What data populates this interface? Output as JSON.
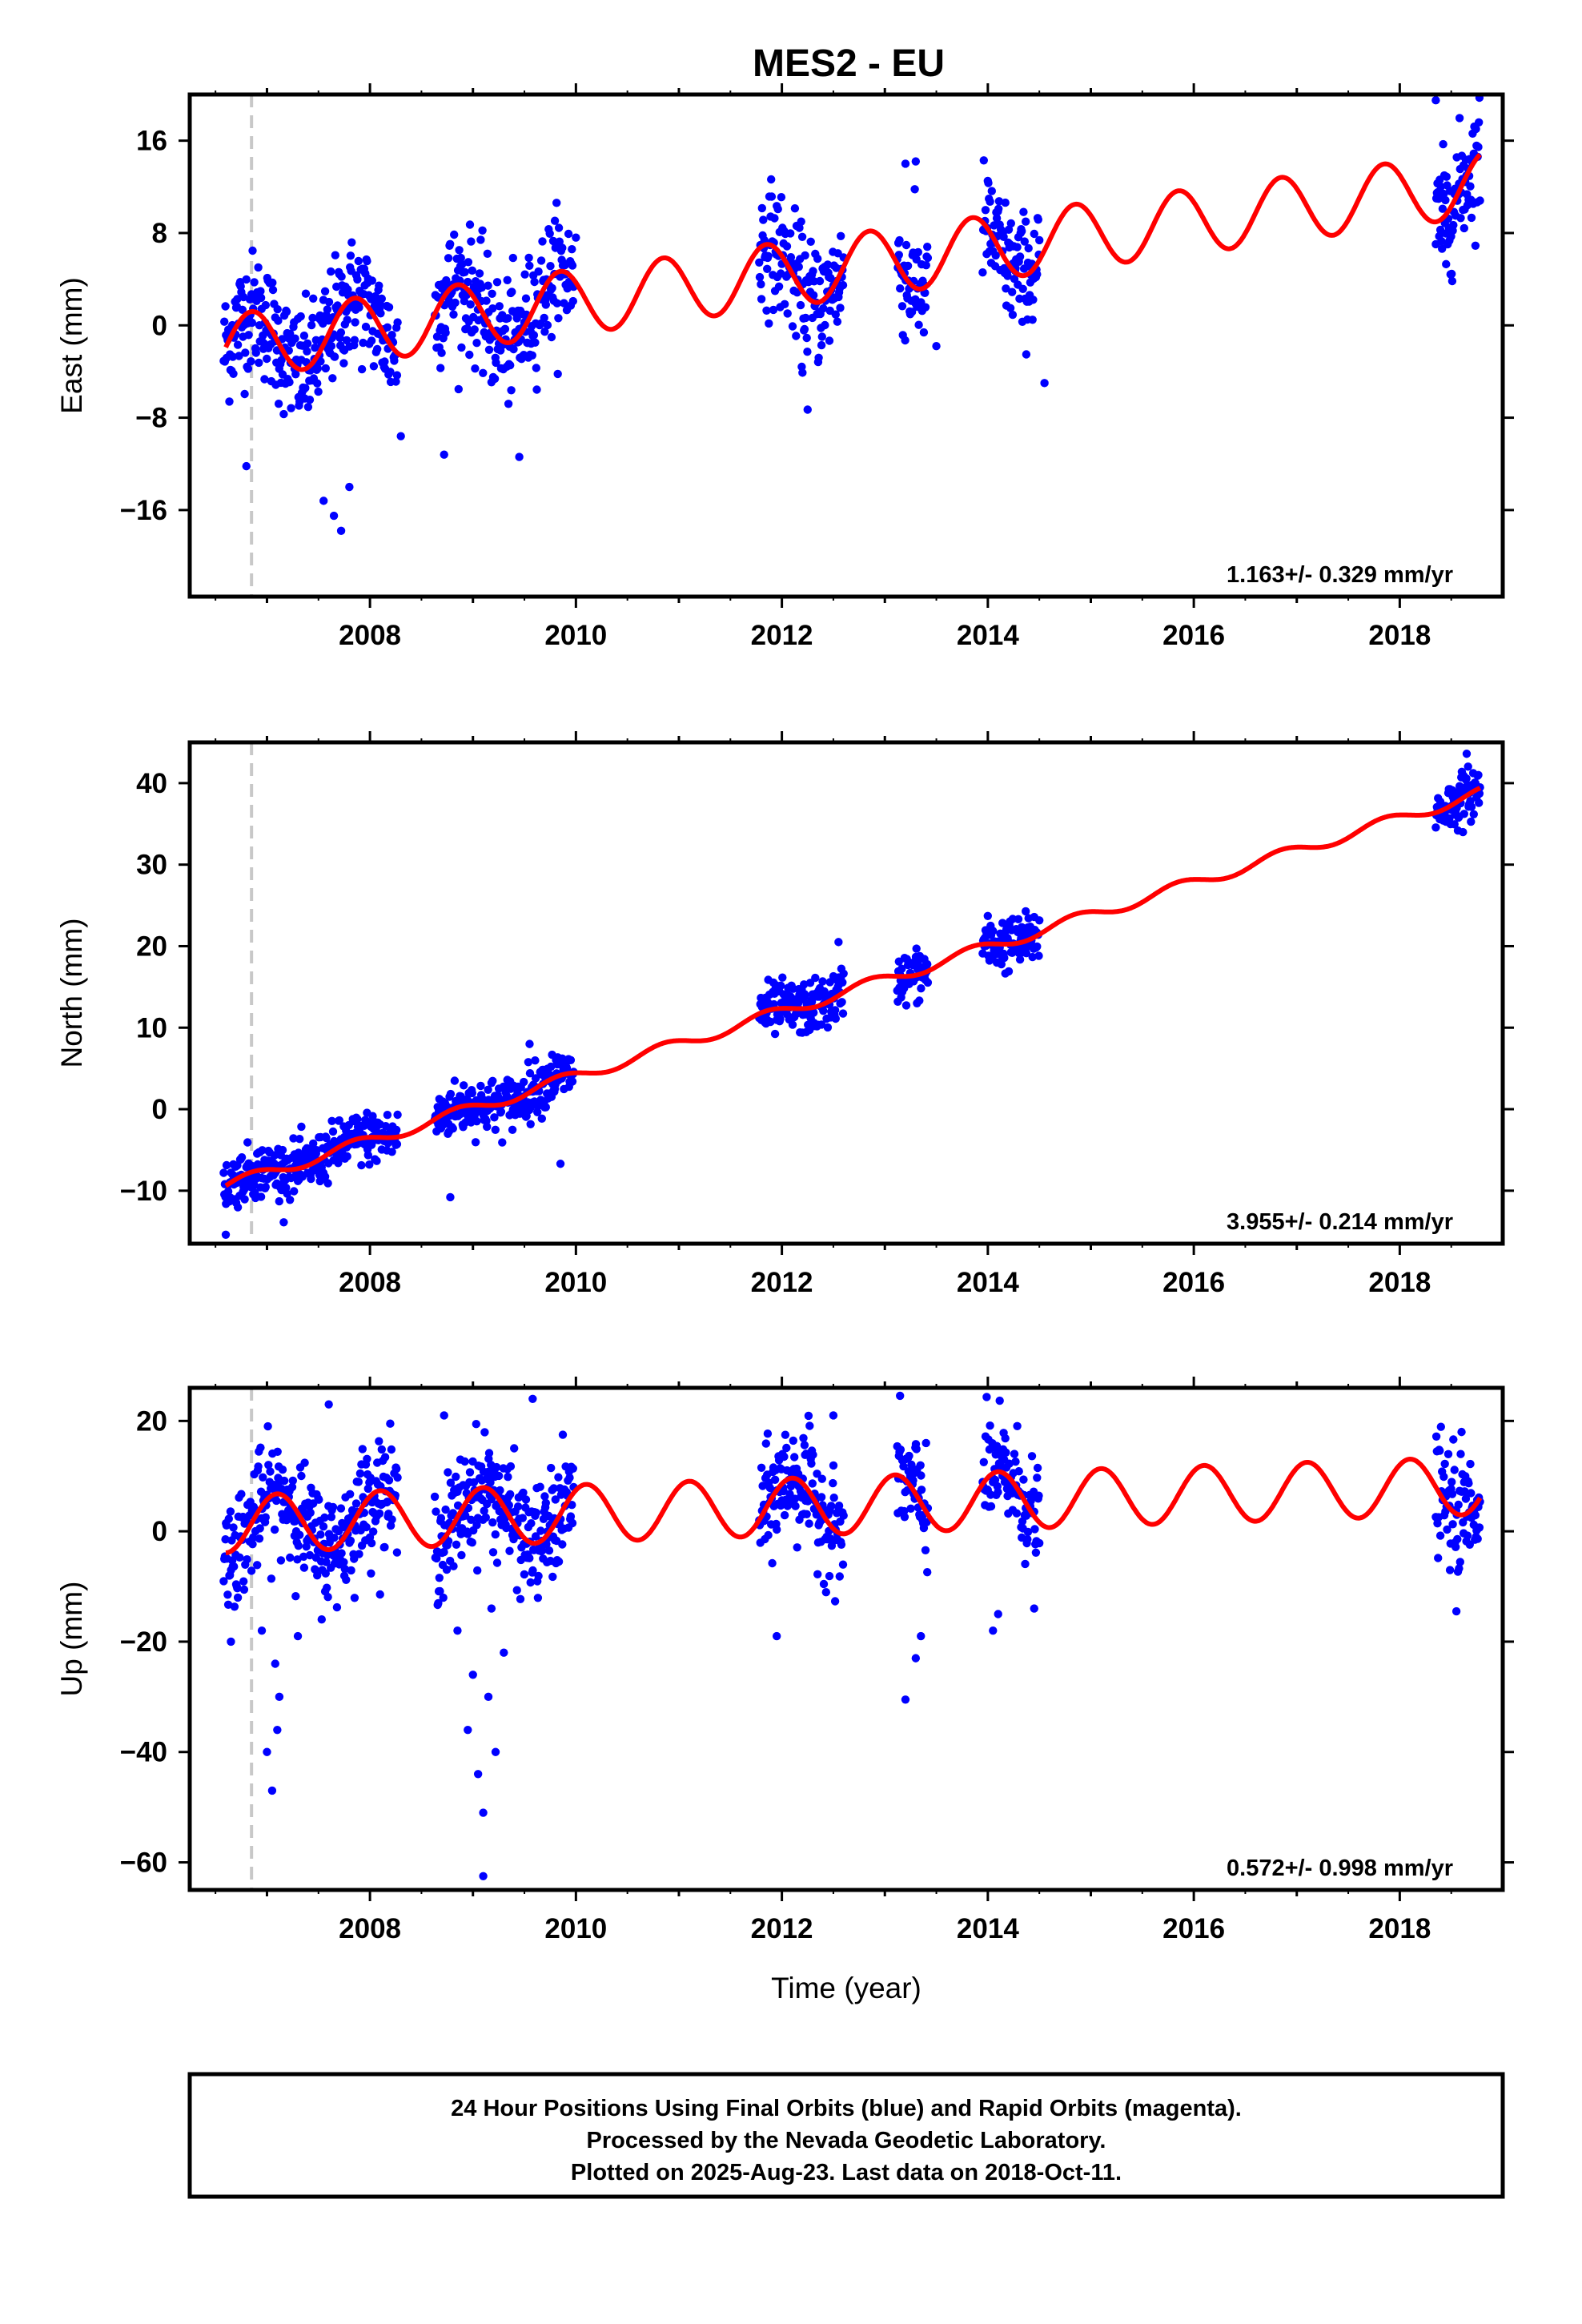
{
  "title": "MES2 - EU",
  "footer": {
    "lines": [
      "24 Hour Positions Using Final Orbits (blue) and Rapid Orbits (magenta).",
      "Processed by the Nevada Geodetic Laboratory.",
      "Plotted on 2025-Aug-23. Last data on 2018-Oct-11."
    ]
  },
  "colors": {
    "final_orbits": "#0000ff",
    "model": "#ff0000",
    "event_line": "#c8c8c8",
    "frame": "#000000"
  },
  "chart_data": [
    {
      "type": "scatter",
      "panel": "east",
      "title": "MES2 - EU",
      "xlabel": "",
      "ylabel": "East (mm)",
      "xlim": [
        2006.25,
        2019.0
      ],
      "ylim": [
        -23.5,
        20.0
      ],
      "xticks": [
        2008,
        2010,
        2012,
        2014,
        2016,
        2018
      ],
      "yticks": [
        -16,
        -8,
        0,
        8,
        16
      ],
      "rate_text": "1.163+/- 0.329 mm/yr",
      "event_year": 2006.85,
      "grid": false,
      "series": [
        {
          "kind": "points",
          "color": "#0000ff",
          "segments": [
            [
              2006.58,
              2008.27
            ],
            [
              2008.63,
              2009.98
            ],
            [
              2011.78,
              2012.6
            ],
            [
              2013.12,
              2013.42
            ],
            [
              2013.95,
              2014.5
            ],
            [
              2018.35,
              2018.78
            ]
          ],
          "trend_mm_per_yr": 1.163,
          "offset_mm": -1.9,
          "amplitude_mm": 2.8,
          "phase_year": 2006.6,
          "scatter_mm": 2.6,
          "outliers": [
            [
              2006.8,
              -12.2
            ],
            [
              2007.55,
              -15.2
            ],
            [
              2007.65,
              -16.5
            ],
            [
              2007.72,
              -17.8
            ],
            [
              2007.8,
              -14.0
            ],
            [
              2008.3,
              -9.6
            ],
            [
              2008.72,
              -11.2
            ],
            [
              2009.45,
              -11.4
            ],
            [
              2010.0,
              7.6
            ],
            [
              2012.2,
              -4.1
            ],
            [
              2012.25,
              -7.3
            ],
            [
              2013.2,
              14.0
            ],
            [
              2013.3,
              14.2
            ],
            [
              2013.5,
              -1.8
            ],
            [
              2014.55,
              -5.0
            ],
            [
              2018.45,
              5.3
            ],
            [
              2018.35,
              19.5
            ]
          ]
        },
        {
          "kind": "model",
          "color": "#ff0000",
          "x_range": [
            2006.6,
            2018.78
          ],
          "trend_mm_per_yr": 1.163,
          "offset_mm": -1.9,
          "amplitude_mm": 2.8,
          "phase_year": 2006.6
        }
      ]
    },
    {
      "type": "scatter",
      "panel": "north",
      "title": "",
      "xlabel": "",
      "ylabel": "North (mm)",
      "xlim": [
        2006.25,
        2019.0
      ],
      "ylim": [
        -16.5,
        45.0
      ],
      "xticks": [
        2008,
        2010,
        2012,
        2014,
        2016,
        2018
      ],
      "yticks": [
        -10,
        0,
        10,
        20,
        30,
        40
      ],
      "rate_text": "3.955+/- 0.214 mm/yr",
      "event_year": 2006.85,
      "grid": false,
      "series": [
        {
          "kind": "points",
          "color": "#0000ff",
          "segments": [
            [
              2006.58,
              2008.27
            ],
            [
              2008.63,
              2009.98
            ],
            [
              2011.78,
              2012.6
            ],
            [
              2013.12,
              2013.42
            ],
            [
              2013.95,
              2014.5
            ],
            [
              2018.35,
              2018.78
            ]
          ],
          "trend_mm_per_yr": 3.955,
          "offset_mm": -9.4,
          "amplitude_mm": 0.7,
          "phase_year": 2006.6,
          "scatter_mm": 1.6,
          "outliers": [
            [
              2006.6,
              -15.4
            ],
            [
              2008.78,
              -10.8
            ],
            [
              2009.85,
              -6.7
            ],
            [
              2012.55,
              20.5
            ],
            [
              2018.65,
              43.6
            ],
            [
              2009.55,
              8.0
            ]
          ]
        },
        {
          "kind": "model",
          "color": "#ff0000",
          "x_range": [
            2006.6,
            2018.78
          ],
          "trend_mm_per_yr": 3.955,
          "offset_mm": -9.4,
          "amplitude_mm": 0.7,
          "phase_year": 2006.6
        }
      ]
    },
    {
      "type": "scatter",
      "panel": "up",
      "title": "",
      "xlabel": "Time (year)",
      "ylabel": "Up (mm)",
      "xlim": [
        2006.25,
        2019.0
      ],
      "ylim": [
        -65.0,
        26.0
      ],
      "xticks": [
        2008,
        2010,
        2012,
        2014,
        2016,
        2018
      ],
      "yticks": [
        -60,
        -40,
        -20,
        0,
        20
      ],
      "rate_text": "0.572+/- 0.998 mm/yr",
      "event_year": 2006.85,
      "grid": false,
      "series": [
        {
          "kind": "points",
          "color": "#0000ff",
          "segments": [
            [
              2006.58,
              2008.27
            ],
            [
              2008.63,
              2009.98
            ],
            [
              2011.78,
              2012.6
            ],
            [
              2013.12,
              2013.42
            ],
            [
              2013.95,
              2014.5
            ],
            [
              2018.35,
              2018.78
            ]
          ],
          "trend_mm_per_yr": 0.572,
          "offset_mm": 1.3,
          "amplitude_mm": 5.2,
          "phase_year": 2006.85,
          "scatter_mm": 5.0,
          "outliers": [
            [
              2006.65,
              -20.0
            ],
            [
              2006.95,
              -18.0
            ],
            [
              2007.05,
              -47.0
            ],
            [
              2007.0,
              -40.0
            ],
            [
              2007.1,
              -36.0
            ],
            [
              2007.12,
              -30.0
            ],
            [
              2007.08,
              -24.0
            ],
            [
              2007.3,
              -19.0
            ],
            [
              2007.6,
              23.0
            ],
            [
              2008.72,
              21.0
            ],
            [
              2009.1,
              -62.5
            ],
            [
              2009.1,
              -51.0
            ],
            [
              2009.05,
              -44.0
            ],
            [
              2009.22,
              -40.0
            ],
            [
              2008.95,
              -36.0
            ],
            [
              2009.15,
              -30.0
            ],
            [
              2009.0,
              -26.0
            ],
            [
              2009.3,
              -22.0
            ],
            [
              2008.85,
              -18.0
            ],
            [
              2009.18,
              -14.0
            ],
            [
              2009.58,
              24.0
            ],
            [
              2013.2,
              -30.5
            ],
            [
              2013.3,
              -23.0
            ],
            [
              2013.35,
              -19.0
            ],
            [
              2013.4,
              16.0
            ],
            [
              2014.05,
              -18.0
            ],
            [
              2014.1,
              -15.0
            ],
            [
              2014.45,
              -14.0
            ],
            [
              2011.95,
              -19.0
            ],
            [
              2012.5,
              21.0
            ],
            [
              2018.55,
              -14.5
            ],
            [
              2018.6,
              18.0
            ]
          ]
        },
        {
          "kind": "model",
          "color": "#ff0000",
          "x_range": [
            2006.6,
            2018.78
          ],
          "trend_mm_per_yr": 0.572,
          "offset_mm": 1.3,
          "amplitude_mm": 5.2,
          "phase_year": 2006.85
        }
      ]
    }
  ]
}
